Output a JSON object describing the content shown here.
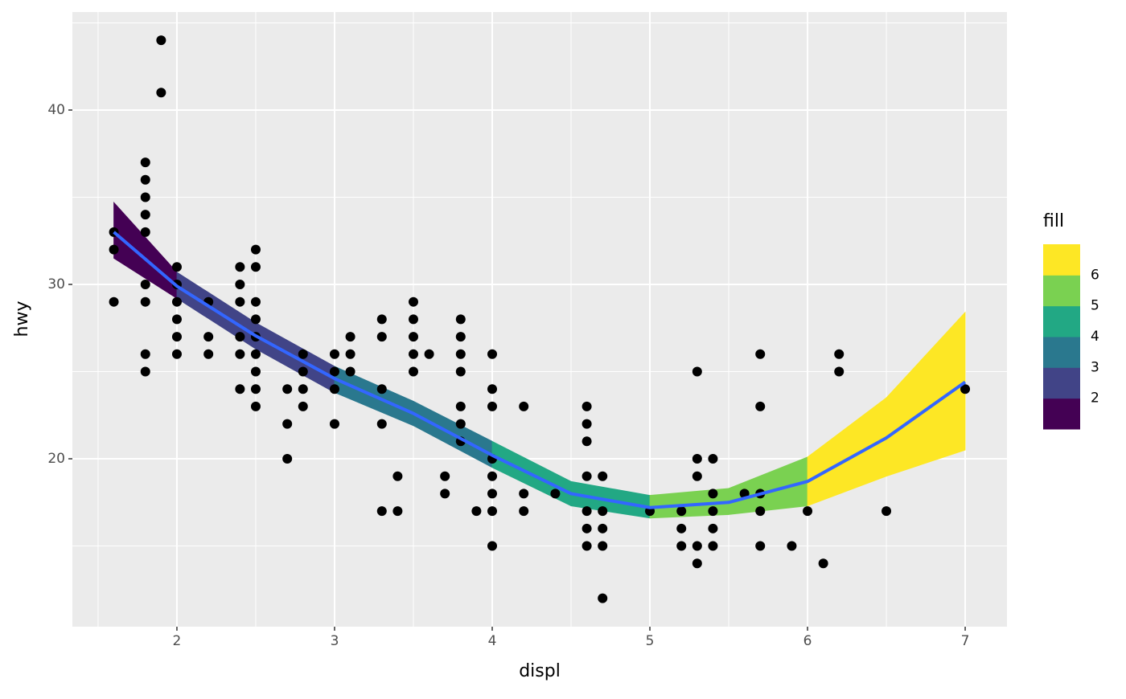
{
  "chart_data": {
    "type": "scatter",
    "x_label": "displ",
    "y_label": "hwy",
    "xlim": [
      1.337,
      7.265
    ],
    "ylim": [
      10.37,
      45.62
    ],
    "xticks": [
      2,
      3,
      4,
      5,
      6,
      7
    ],
    "yticks": [
      20,
      30,
      40
    ],
    "xminor_ticks": [
      1.5,
      2.5,
      3.5,
      4.5,
      5.5,
      6.5
    ],
    "yminor_ticks": [
      15,
      25,
      35,
      45
    ],
    "grid": true,
    "point_color": "#000000",
    "points": {
      "x": [
        1.6,
        1.6,
        1.6,
        1.8,
        1.8,
        1.8,
        1.8,
        1.8,
        1.8,
        1.8,
        1.8,
        1.8,
        1.9,
        1.9,
        2,
        2,
        2,
        2,
        2,
        2,
        2.2,
        2.2,
        2.2,
        2.4,
        2.4,
        2.4,
        2.4,
        2.4,
        2.4,
        2.5,
        2.5,
        2.5,
        2.5,
        2.5,
        2.5,
        2.5,
        2.5,
        2.5,
        2.7,
        2.7,
        2.7,
        2.8,
        2.8,
        2.8,
        2.8,
        3,
        3,
        3,
        3,
        3.1,
        3.1,
        3.1,
        3.3,
        3.3,
        3.3,
        3.3,
        3.3,
        3.4,
        3.4,
        3.5,
        3.5,
        3.5,
        3.5,
        3.5,
        3.6,
        3.7,
        3.7,
        3.8,
        3.8,
        3.8,
        3.8,
        3.8,
        3.8,
        3.8,
        3.9,
        4,
        4,
        4,
        4,
        4,
        4,
        4,
        4,
        4.2,
        4.2,
        4.2,
        4.4,
        4.6,
        4.6,
        4.6,
        4.6,
        4.6,
        4.6,
        4.6,
        4.7,
        4.7,
        4.7,
        4.7,
        4.7,
        5,
        5.2,
        5.2,
        5.2,
        5.3,
        5.3,
        5.3,
        5.3,
        5.3,
        5.4,
        5.4,
        5.4,
        5.4,
        5.4,
        5.6,
        5.7,
        5.7,
        5.7,
        5.7,
        5.7,
        5.9,
        6,
        6.1,
        6.2,
        6.2,
        6.5,
        7
      ],
      "y": [
        33,
        32,
        29,
        37,
        36,
        35,
        34,
        33,
        30,
        29,
        26,
        25,
        44,
        41,
        31,
        30,
        29,
        28,
        27,
        26,
        29,
        27,
        26,
        31,
        30,
        29,
        27,
        26,
        24,
        32,
        31,
        29,
        28,
        27,
        26,
        25,
        24,
        23,
        24,
        22,
        20,
        26,
        25,
        24,
        23,
        26,
        25,
        24,
        22,
        27,
        26,
        25,
        28,
        27,
        24,
        22,
        17,
        19,
        17,
        29,
        28,
        27,
        26,
        25,
        26,
        19,
        18,
        28,
        27,
        26,
        25,
        23,
        22,
        21,
        17,
        26,
        24,
        23,
        20,
        19,
        18,
        17,
        15,
        23,
        18,
        17,
        18,
        23,
        22,
        21,
        19,
        17,
        16,
        15,
        19,
        17,
        16,
        15,
        12,
        17,
        17,
        16,
        15,
        25,
        20,
        19,
        15,
        14,
        20,
        18,
        17,
        16,
        15,
        18,
        26,
        23,
        18,
        17,
        15,
        15,
        17,
        14,
        26,
        25,
        17,
        24
      ]
    },
    "smooth": {
      "color": "#3366FF",
      "x": [
        1.6,
        2,
        2.5,
        3,
        3.5,
        4,
        4.5,
        5,
        5.5,
        6,
        6.5,
        7
      ],
      "fit": [
        33.0,
        29.9,
        27.05,
        24.6,
        22.6,
        20.2,
        18.0,
        17.2,
        17.5,
        18.7,
        21.2,
        24.4
      ],
      "ymin": [
        31.5,
        29.2,
        26.3,
        23.8,
        21.9,
        19.5,
        17.3,
        16.6,
        16.8,
        17.3,
        19.0,
        20.5
      ],
      "ymax": [
        34.7,
        30.7,
        27.8,
        25.3,
        23.3,
        21.0,
        18.7,
        17.9,
        18.3,
        20.1,
        23.5,
        28.4
      ]
    },
    "legend": {
      "title": "fill",
      "breaks": [
        2,
        3,
        4,
        5,
        6
      ],
      "colors": [
        "#440154",
        "#414487",
        "#2A788E",
        "#22A884",
        "#7AD151",
        "#FDE725"
      ]
    }
  }
}
